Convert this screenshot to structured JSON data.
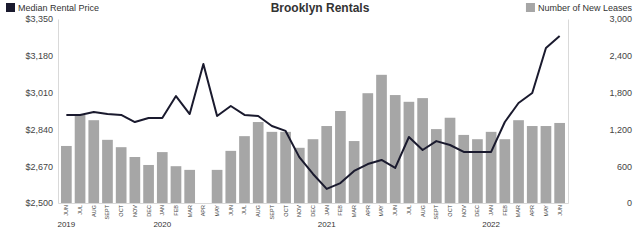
{
  "chart_data": {
    "type": "bar",
    "title": "Brooklyn Rentals",
    "legend": "top",
    "grid": false,
    "categories": [
      "JUN",
      "JUL",
      "AUG",
      "SEPT",
      "OCT",
      "NOV",
      "DEC",
      "JAN",
      "FEB",
      "MAR",
      "APR",
      "MAY",
      "JUN",
      "JUL",
      "AUG",
      "SEPT",
      "OCT",
      "NOV",
      "DEC",
      "JAN",
      "FEB",
      "MAR",
      "APR",
      "MAY",
      "JUN",
      "JUL",
      "AUG",
      "SEPT",
      "OCT",
      "NOV",
      "DEC",
      "JAN",
      "FEB",
      "MAR",
      "APR",
      "MAY",
      "JUN"
    ],
    "annotations": [
      {
        "text": "2019",
        "index": 0
      },
      {
        "text": "2020",
        "index": 7
      },
      {
        "text": "2021",
        "index": 19
      },
      {
        "text": "2022",
        "index": 31
      }
    ],
    "ylim": [
      2500,
      3350
    ],
    "yticks": [
      {
        "value": 2500,
        "label": "$2,500"
      },
      {
        "value": 2670,
        "label": "$2,670"
      },
      {
        "value": 2840,
        "label": "$2,840"
      },
      {
        "value": 3010,
        "label": "$3,010"
      },
      {
        "value": 3180,
        "label": "$3,180"
      },
      {
        "value": 3350,
        "label": "$3,350"
      }
    ],
    "y2lim": [
      0,
      3000
    ],
    "y2ticks": [
      0,
      600,
      {
        "value": 1200,
        "label": "1,200"
      },
      {
        "value": 1800,
        "label": "1,800"
      },
      {
        "value": 2400,
        "label": "2,400"
      },
      {
        "value": 3000,
        "label": "3,000"
      }
    ],
    "series": [
      {
        "name": "Median Rental Price",
        "type": "line",
        "color": "#1a1a2e",
        "values": [
          2907,
          2907,
          2920,
          2911,
          2907,
          2874,
          2893,
          2893,
          2994,
          2911,
          3142,
          2902,
          2948,
          2907,
          2902,
          2856,
          2833,
          2712,
          2634,
          2565,
          2592,
          2648,
          2680,
          2699,
          2662,
          2805,
          2745,
          2786,
          2768,
          2736,
          2736,
          2736,
          2874,
          2962,
          3008,
          3216,
          3271
        ]
      },
      {
        "name": "Number of New Leases",
        "type": "bar",
        "axis": "y2",
        "color": "#a6a6a6",
        "values": [
          930,
          1435,
          1350,
          1030,
          910,
          750,
          620,
          830,
          600,
          540,
          0,
          540,
          850,
          1090,
          1320,
          1160,
          1160,
          900,
          1040,
          1255,
          1500,
          1010,
          1790,
          2090,
          1760,
          1650,
          1710,
          1205,
          1390,
          1110,
          1040,
          1160,
          1040,
          1350,
          1255,
          1255,
          1305
        ]
      }
    ]
  }
}
